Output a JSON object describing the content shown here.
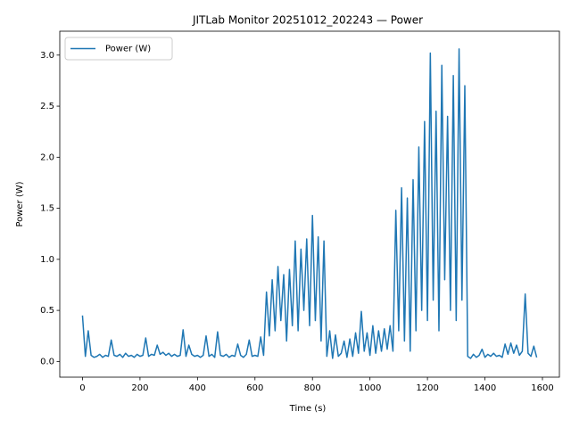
{
  "chart_data": {
    "type": "line",
    "title": "JITLab Monitor 20251012_202243 — Power",
    "xlabel": "Time (s)",
    "ylabel": "Power (W)",
    "legend": "upper left",
    "xlim": [
      -79,
      1659
    ],
    "ylim": [
      -0.154,
      3.234
    ],
    "xticks": [
      0,
      200,
      400,
      600,
      800,
      1000,
      1200,
      1400,
      1600
    ],
    "yticks": [
      {
        "value": 0,
        "label": "0.0"
      },
      {
        "value": 0.5,
        "label": "0.5"
      },
      {
        "value": 1,
        "label": "1.0"
      },
      {
        "value": 1.5,
        "label": "1.5"
      },
      {
        "value": 2,
        "label": "2.0"
      },
      {
        "value": 2.5,
        "label": "2.5"
      },
      {
        "value": 3,
        "label": "3.0"
      }
    ],
    "x": [
      0,
      10,
      20,
      30,
      40,
      50,
      60,
      70,
      80,
      90,
      100,
      110,
      120,
      130,
      140,
      150,
      160,
      170,
      180,
      190,
      200,
      210,
      220,
      230,
      240,
      250,
      260,
      270,
      280,
      290,
      300,
      310,
      320,
      330,
      340,
      350,
      360,
      370,
      380,
      390,
      400,
      410,
      420,
      430,
      440,
      450,
      460,
      470,
      480,
      490,
      500,
      510,
      520,
      530,
      540,
      550,
      560,
      570,
      580,
      590,
      600,
      610,
      620,
      630,
      640,
      650,
      660,
      670,
      680,
      690,
      700,
      710,
      720,
      730,
      740,
      750,
      760,
      770,
      780,
      790,
      800,
      810,
      820,
      830,
      840,
      850,
      860,
      870,
      880,
      890,
      900,
      910,
      920,
      930,
      940,
      950,
      960,
      970,
      980,
      990,
      1000,
      1010,
      1020,
      1030,
      1040,
      1050,
      1060,
      1070,
      1080,
      1090,
      1100,
      1110,
      1120,
      1130,
      1140,
      1150,
      1160,
      1170,
      1180,
      1190,
      1200,
      1210,
      1220,
      1230,
      1240,
      1250,
      1260,
      1270,
      1280,
      1290,
      1300,
      1310,
      1320,
      1330,
      1340,
      1350,
      1360,
      1370,
      1380,
      1390,
      1400,
      1410,
      1420,
      1430,
      1440,
      1450,
      1460,
      1470,
      1480,
      1490,
      1500,
      1510,
      1520,
      1530,
      1540,
      1550,
      1560,
      1570,
      1580
    ],
    "series": [
      {
        "name": "Power (W)",
        "color": "#1f77b4",
        "values": [
          0.45,
          0.05,
          0.3,
          0.06,
          0.04,
          0.05,
          0.07,
          0.04,
          0.06,
          0.05,
          0.21,
          0.06,
          0.05,
          0.07,
          0.04,
          0.08,
          0.05,
          0.06,
          0.04,
          0.07,
          0.05,
          0.06,
          0.23,
          0.05,
          0.07,
          0.06,
          0.16,
          0.07,
          0.09,
          0.06,
          0.08,
          0.05,
          0.07,
          0.05,
          0.06,
          0.31,
          0.05,
          0.16,
          0.07,
          0.05,
          0.06,
          0.04,
          0.06,
          0.25,
          0.05,
          0.07,
          0.04,
          0.29,
          0.06,
          0.05,
          0.07,
          0.04,
          0.06,
          0.05,
          0.17,
          0.06,
          0.04,
          0.07,
          0.21,
          0.05,
          0.06,
          0.05,
          0.24,
          0.06,
          0.68,
          0.25,
          0.8,
          0.3,
          0.93,
          0.4,
          0.85,
          0.2,
          0.9,
          0.35,
          1.18,
          0.3,
          1.1,
          0.5,
          1.2,
          0.35,
          1.43,
          0.4,
          1.22,
          0.2,
          1.18,
          0.05,
          0.3,
          0.03,
          0.26,
          0.05,
          0.08,
          0.2,
          0.04,
          0.22,
          0.05,
          0.28,
          0.08,
          0.49,
          0.1,
          0.28,
          0.06,
          0.35,
          0.08,
          0.3,
          0.1,
          0.32,
          0.12,
          0.35,
          0.1,
          1.48,
          0.3,
          1.7,
          0.2,
          1.6,
          0.1,
          1.78,
          0.3,
          2.1,
          0.5,
          2.35,
          0.4,
          3.02,
          0.6,
          2.45,
          0.3,
          2.9,
          0.8,
          2.4,
          0.5,
          2.8,
          0.4,
          3.06,
          0.6,
          2.7,
          0.05,
          0.03,
          0.07,
          0.04,
          0.06,
          0.12,
          0.04,
          0.07,
          0.05,
          0.08,
          0.05,
          0.06,
          0.04,
          0.17,
          0.07,
          0.18,
          0.08,
          0.16,
          0.06,
          0.1,
          0.66,
          0.08,
          0.05,
          0.15,
          0.04
        ]
      }
    ]
  }
}
